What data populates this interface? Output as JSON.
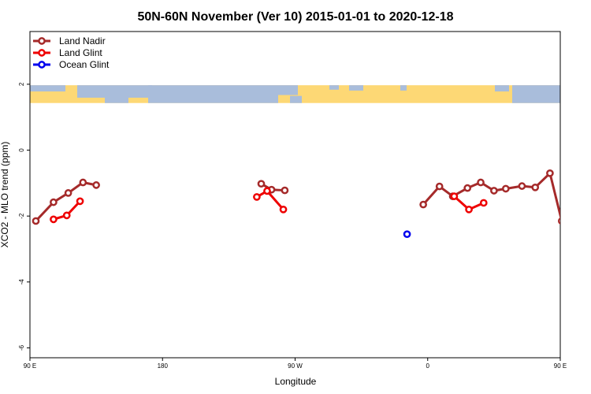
{
  "chart_data": {
    "type": "line",
    "title": "50N-60N November (Ver 10)   2015-01-01 to 2020-12-18",
    "xlabel": "Longitude",
    "ylabel": "XCO2 - MLO trend (ppm)",
    "xlim": [
      90,
      450
    ],
    "ylim": [
      -6.3,
      3.6
    ],
    "x_ticks": [
      {
        "value": 90,
        "label": "90 E"
      },
      {
        "value": 180,
        "label": "180"
      },
      {
        "value": 270,
        "label": "90 W"
      },
      {
        "value": 360,
        "label": "0"
      },
      {
        "value": 450,
        "label": "90 E"
      },
      {
        "value": 540,
        "label": "180"
      }
    ],
    "y_ticks": [
      {
        "value": 2,
        "label": "2"
      },
      {
        "value": 0,
        "label": "0"
      },
      {
        "value": -2,
        "label": "-2"
      },
      {
        "value": -4,
        "label": "-4"
      },
      {
        "value": -6,
        "label": "-6"
      }
    ],
    "map_band": {
      "y_top": 1.97,
      "y_bottom": 1.43,
      "ocean_color": "#a9bddb",
      "land_color": "#fdd875"
    },
    "legend_position": "top-left",
    "series": [
      {
        "name": "Land Nadir",
        "color": "#a52a2a",
        "segments": [
          [
            [
              94,
              -2.15
            ],
            [
              106,
              -1.58
            ],
            [
              116,
              -1.3
            ],
            [
              126,
              -0.98
            ],
            [
              135,
              -1.06
            ]
          ],
          [
            [
              247,
              -1.02
            ],
            [
              254,
              -1.2
            ],
            [
              263,
              -1.22
            ]
          ],
          [
            [
              357,
              -1.65
            ],
            [
              368,
              -1.1
            ],
            [
              377,
              -1.4
            ],
            [
              387,
              -1.15
            ],
            [
              396,
              -0.98
            ],
            [
              405,
              -1.23
            ],
            [
              413,
              -1.17
            ],
            [
              424,
              -1.09
            ],
            [
              433,
              -1.13
            ],
            [
              443,
              -0.7
            ],
            [
              451,
              -2.15
            ],
            [
              461,
              -1.6
            ],
            [
              471,
              -1.32
            ],
            [
              481,
              -0.98
            ],
            [
              490,
              -1.08
            ]
          ]
        ]
      },
      {
        "name": "Land Glint",
        "color": "#ee0000",
        "segments": [
          [
            [
              106,
              -2.1
            ],
            [
              115,
              -1.98
            ],
            [
              124,
              -1.55
            ]
          ],
          [
            [
              244,
              -1.42
            ],
            [
              251,
              -1.24
            ],
            [
              262,
              -1.8
            ]
          ],
          [
            [
              378,
              -1.4
            ],
            [
              388,
              -1.8
            ],
            [
              398,
              -1.6
            ]
          ],
          [
            [
              461,
              -2.12
            ],
            [
              470,
              -1.98
            ],
            [
              479,
              -1.56
            ]
          ]
        ]
      },
      {
        "name": "Ocean Glint",
        "color": "#0000ee",
        "segments": [
          [
            [
              346,
              -2.55
            ]
          ]
        ]
      }
    ]
  }
}
